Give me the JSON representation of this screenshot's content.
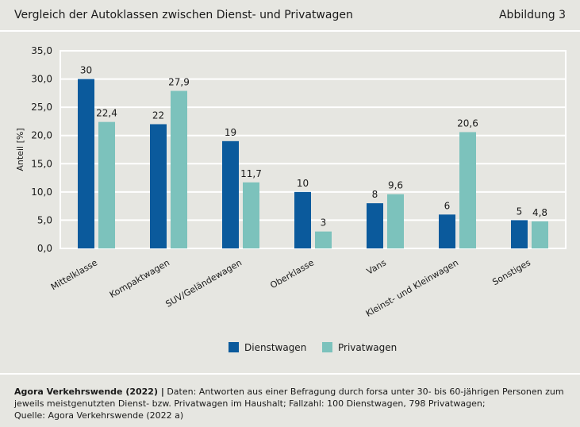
{
  "header": {
    "title": "Vergleich der Autoklassen zwischen Dienst- und Privatwagen",
    "figure_number": "Abbildung 3"
  },
  "colors": {
    "dienstwagen": "#0b5a9c",
    "privatwagen": "#7cc2bc",
    "background": "#e6e6e1",
    "grid": "#ffffff"
  },
  "chart_data": {
    "type": "bar",
    "title": "",
    "ylabel": "Anteil [%]",
    "xlabel": "",
    "ylim": [
      0,
      35
    ],
    "yticks": [
      "0,0",
      "5,0",
      "10,0",
      "15,0",
      "20,0",
      "25,0",
      "30,0",
      "35,0"
    ],
    "categories": [
      "Mittelklasse",
      "Kompaktwagen",
      "SUV/Geländewagen",
      "Oberklasse",
      "Vans",
      "Kleinst- und Kleinwagen",
      "Sonstiges"
    ],
    "series": [
      {
        "name": "Dienstwagen",
        "values": [
          30,
          22,
          19,
          10,
          8,
          6,
          5
        ],
        "labels": [
          "30",
          "22",
          "19",
          "10",
          "8",
          "6",
          "5"
        ]
      },
      {
        "name": "Privatwagen",
        "values": [
          22.4,
          27.9,
          11.7,
          3,
          9.6,
          20.6,
          4.8
        ],
        "labels": [
          "22,4",
          "27,9",
          "11,7",
          "3",
          "9,6",
          "20,6",
          "4,8"
        ]
      }
    ],
    "legend": "bottom-center",
    "grid": true
  },
  "footer": {
    "source_bold": "Agora Verkehrswende (2022) |",
    "text": " Daten: Antworten aus einer Befragung durch forsa unter 30- bis 60-jährigen Personen zum jeweils meistgenutzten Dienst- bzw. Privatwagen im Haushalt; Fallzahl: 100 Dienstwagen, 798 Privatwagen;",
    "quelle": "Quelle: Agora Verkehrswende (2022 a)"
  }
}
